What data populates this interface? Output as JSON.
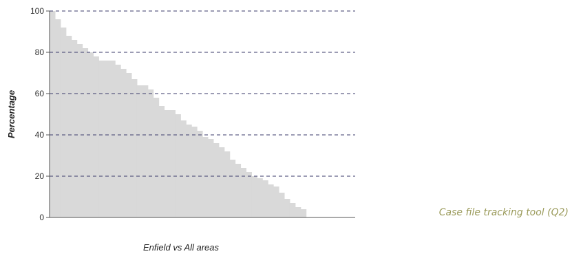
{
  "chart_data": {
    "type": "area",
    "step": true,
    "ylabel": "Percentage",
    "xlabel": "Enfield vs All areas",
    "ylim": [
      0,
      100
    ],
    "yticks": [
      0,
      20,
      40,
      60,
      80,
      100
    ],
    "grid": "horizontal dashed",
    "area_color": "#d9d9d9",
    "grid_color": "#3a3a6a",
    "annotation": "Case file tracking tool (Q2)",
    "annotation_color": "#9a9a5a",
    "values": [
      100,
      96,
      92,
      88,
      86,
      84,
      82,
      80,
      78,
      76,
      76,
      76,
      74,
      72,
      70,
      67,
      64,
      64,
      62,
      58,
      54,
      52,
      52,
      50,
      47,
      45,
      44,
      42,
      39,
      38,
      36,
      34,
      32,
      28,
      26,
      24,
      22,
      20,
      19,
      18,
      16,
      15,
      12,
      9,
      7,
      5,
      4,
      0,
      0,
      0,
      0,
      0,
      0,
      0,
      0,
      0
    ]
  }
}
